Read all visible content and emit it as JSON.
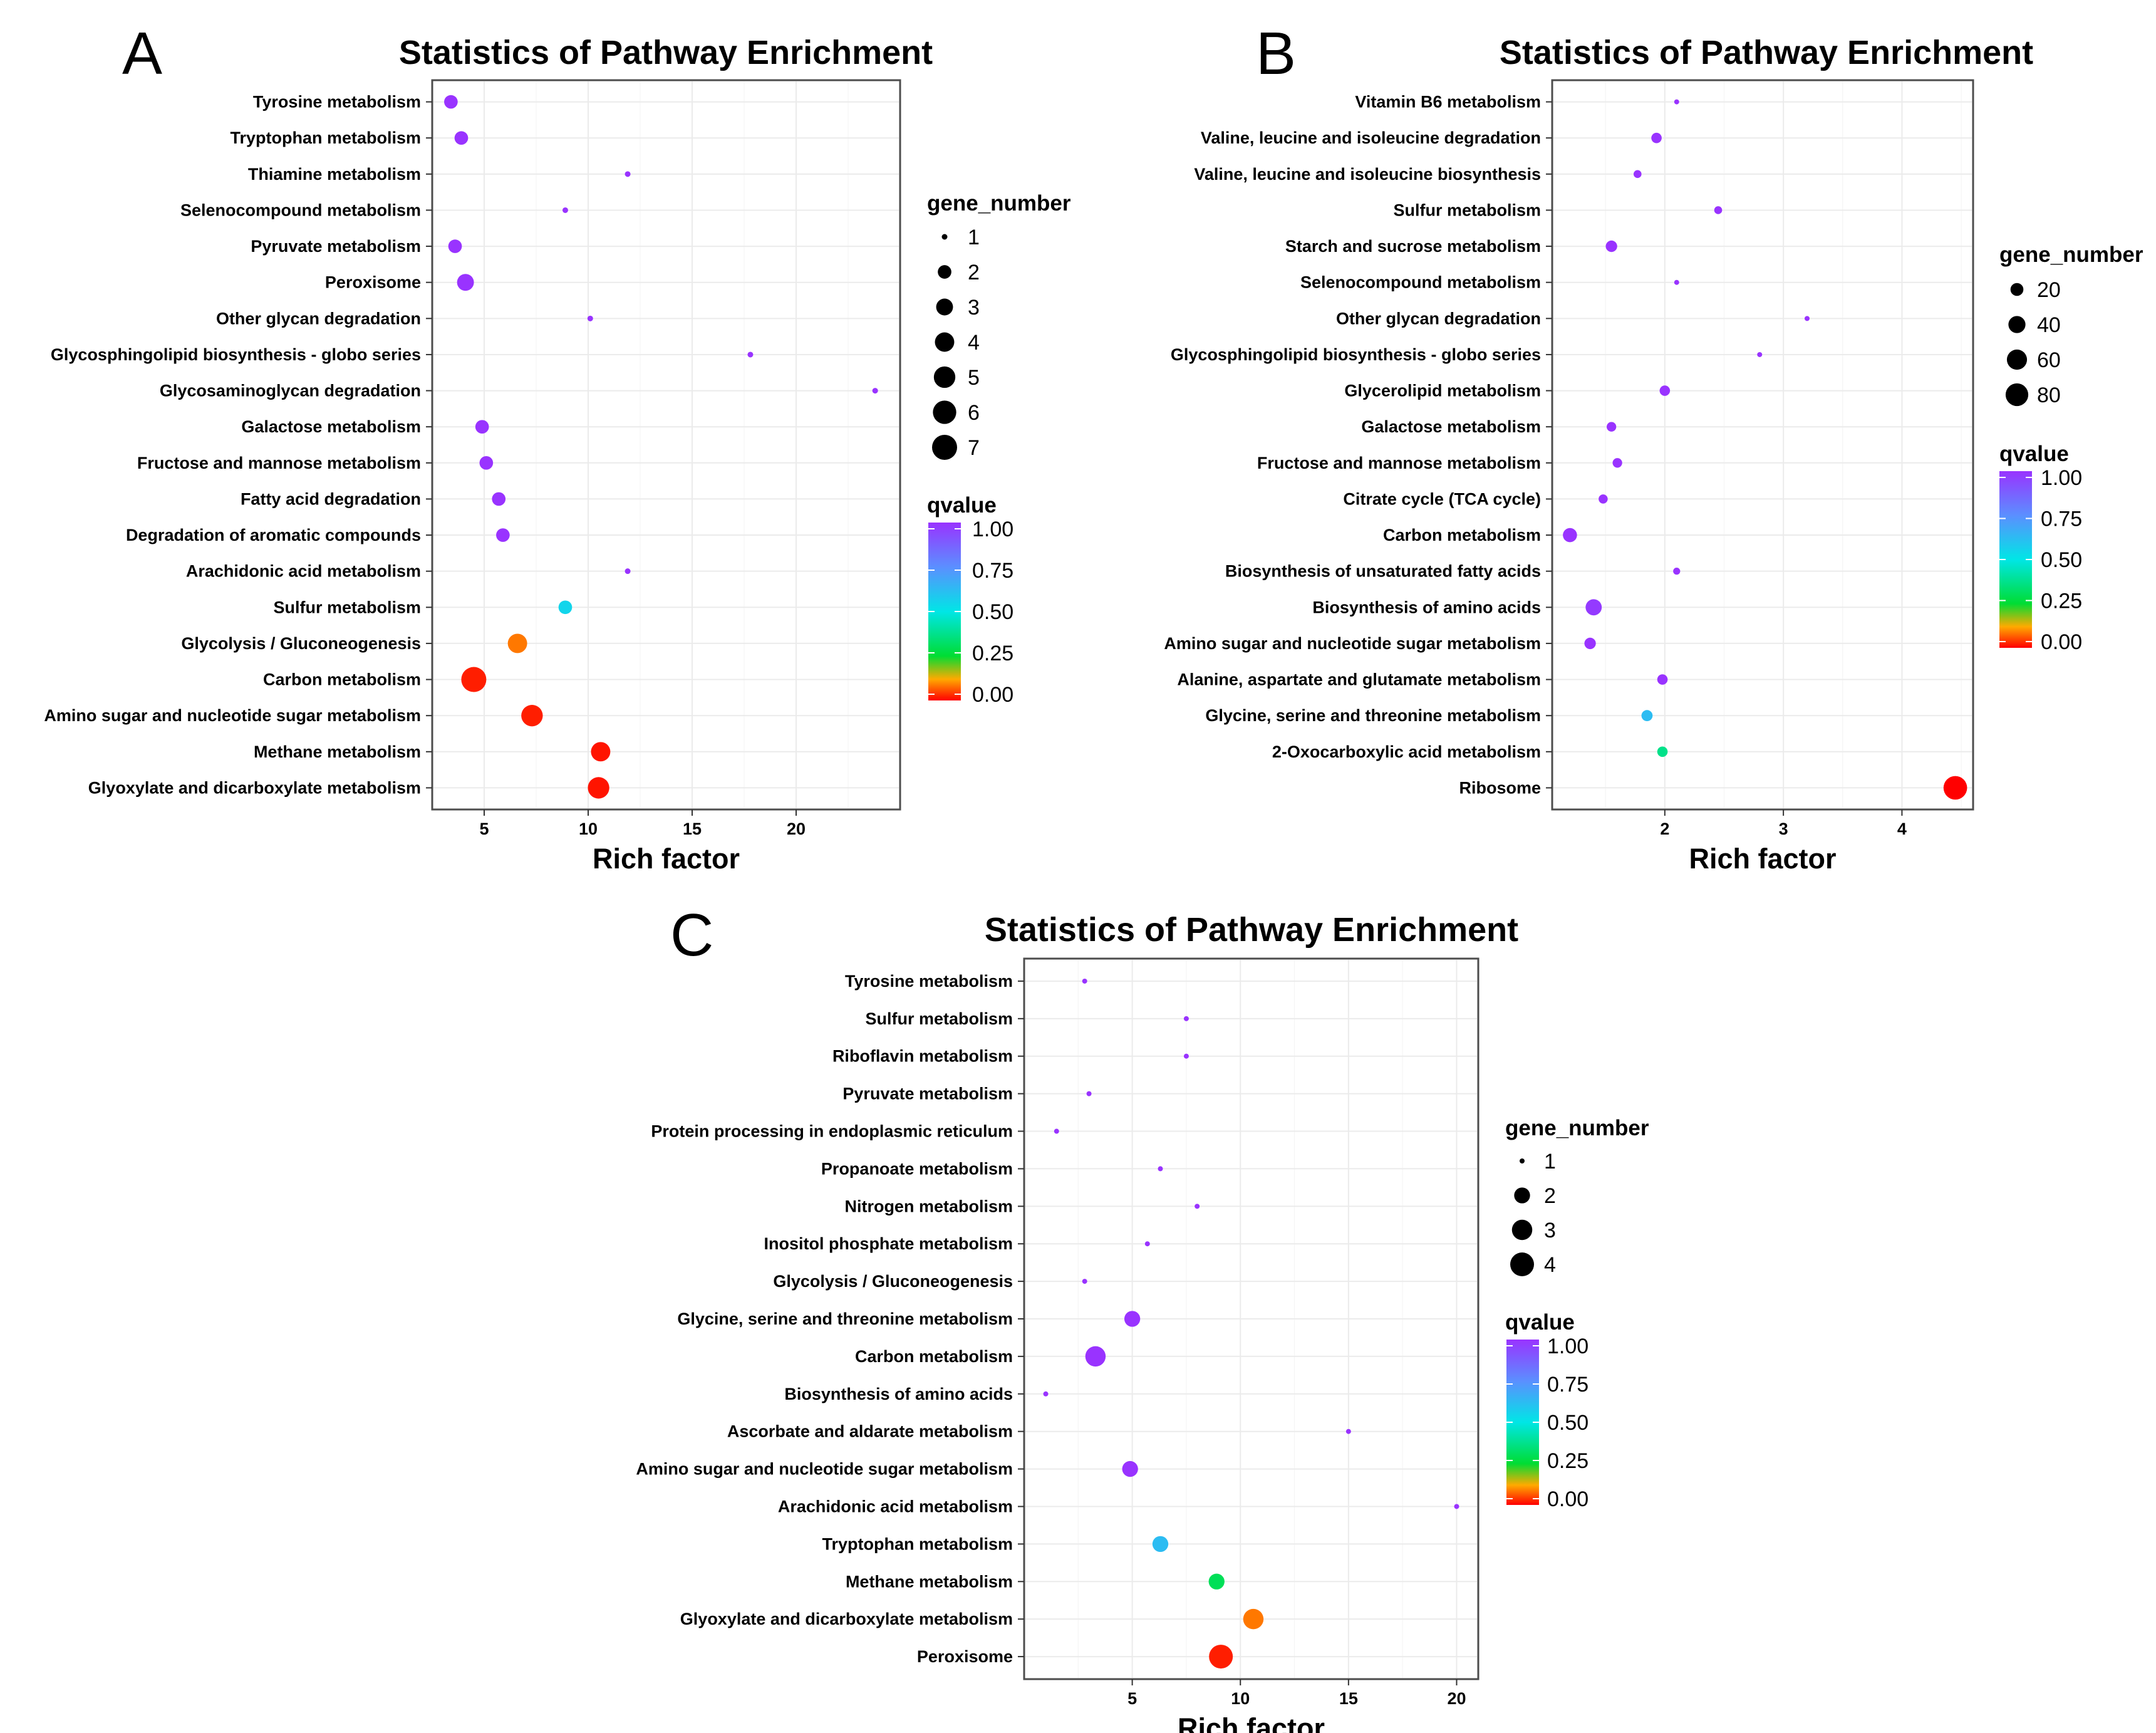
{
  "figure": {
    "panels": [
      "A",
      "B",
      "C"
    ]
  },
  "chart_data": [
    {
      "panel": "A",
      "type": "scatter",
      "title": "Statistics of Pathway Enrichment",
      "xlabel": "Rich factor",
      "ylabel": "",
      "xlim": [
        2.5,
        25
      ],
      "xticks": [
        5,
        10,
        15,
        20
      ],
      "size_legend_title": "gene_number",
      "size_legend": [
        1,
        2,
        3,
        4,
        5,
        6,
        7
      ],
      "size_range": [
        1,
        7
      ],
      "color_legend_title": "qvalue",
      "color_legend": [
        "1.00",
        "0.75",
        "0.50",
        "0.25",
        "0.00"
      ],
      "categories": [
        "Tyrosine metabolism",
        "Tryptophan metabolism",
        "Thiamine metabolism",
        "Selenocompound metabolism",
        "Pyruvate metabolism",
        "Peroxisome",
        "Other glycan degradation",
        "Glycosphingolipid biosynthesis - globo series",
        "Glycosaminoglycan degradation",
        "Galactose metabolism",
        "Fructose and mannose metabolism",
        "Fatty acid degradation",
        "Degradation of aromatic compounds",
        "Arachidonic acid metabolism",
        "Sulfur metabolism",
        "Glycolysis / Gluconeogenesis",
        "Carbon metabolism",
        "Amino sugar and nucleotide sugar metabolism",
        "Methane metabolism",
        "Glyoxylate and dicarboxylate metabolism"
      ],
      "points": [
        {
          "rich_factor": 3.4,
          "gene_number": 2,
          "qvalue": 1.0
        },
        {
          "rich_factor": 3.9,
          "gene_number": 2,
          "qvalue": 1.0
        },
        {
          "rich_factor": 11.9,
          "gene_number": 1,
          "qvalue": 1.0
        },
        {
          "rich_factor": 8.9,
          "gene_number": 1,
          "qvalue": 1.0
        },
        {
          "rich_factor": 3.6,
          "gene_number": 2,
          "qvalue": 1.0
        },
        {
          "rich_factor": 4.1,
          "gene_number": 3,
          "qvalue": 1.0
        },
        {
          "rich_factor": 10.1,
          "gene_number": 1,
          "qvalue": 1.0
        },
        {
          "rich_factor": 17.8,
          "gene_number": 1,
          "qvalue": 1.0
        },
        {
          "rich_factor": 23.8,
          "gene_number": 1,
          "qvalue": 1.0
        },
        {
          "rich_factor": 4.9,
          "gene_number": 2,
          "qvalue": 1.0
        },
        {
          "rich_factor": 5.1,
          "gene_number": 2,
          "qvalue": 1.0
        },
        {
          "rich_factor": 5.7,
          "gene_number": 2,
          "qvalue": 1.0
        },
        {
          "rich_factor": 5.9,
          "gene_number": 2,
          "qvalue": 1.0
        },
        {
          "rich_factor": 11.9,
          "gene_number": 1,
          "qvalue": 1.0
        },
        {
          "rich_factor": 8.9,
          "gene_number": 2,
          "qvalue": 0.55
        },
        {
          "rich_factor": 6.6,
          "gene_number": 4,
          "qvalue": 0.12
        },
        {
          "rich_factor": 4.5,
          "gene_number": 7,
          "qvalue": 0.03
        },
        {
          "rich_factor": 7.3,
          "gene_number": 5,
          "qvalue": 0.03
        },
        {
          "rich_factor": 10.6,
          "gene_number": 4,
          "qvalue": 0.02
        },
        {
          "rich_factor": 10.5,
          "gene_number": 5,
          "qvalue": 0.02
        }
      ]
    },
    {
      "panel": "B",
      "type": "scatter",
      "title": "Statistics of Pathway Enrichment",
      "xlabel": "Rich factor",
      "ylabel": "",
      "xlim": [
        1.05,
        4.6
      ],
      "xticks": [
        2,
        3,
        4
      ],
      "size_legend_title": "gene_number",
      "size_legend": [
        20,
        40,
        60,
        80
      ],
      "size_range": [
        5,
        90
      ],
      "color_legend_title": "qvalue",
      "color_legend": [
        "1.00",
        "0.75",
        "0.50",
        "0.25",
        "0.00"
      ],
      "categories": [
        "Vitamin B6 metabolism",
        "Valine, leucine and isoleucine degradation",
        "Valine, leucine and isoleucine biosynthesis",
        "Sulfur metabolism",
        "Starch and sucrose metabolism",
        "Selenocompound metabolism",
        "Other glycan degradation",
        "Glycosphingolipid biosynthesis - globo series",
        "Glycerolipid metabolism",
        "Galactose metabolism",
        "Fructose and mannose metabolism",
        "Citrate cycle (TCA cycle)",
        "Carbon metabolism",
        "Biosynthesis of unsaturated fatty acids",
        "Biosynthesis of amino acids",
        "Amino sugar and nucleotide sugar metabolism",
        "Alanine, aspartate and glutamate metabolism",
        "Glycine, serine and threonine metabolism",
        "2-Oxocarboxylic acid metabolism",
        "Ribosome"
      ],
      "points": [
        {
          "rich_factor": 2.1,
          "gene_number": 5,
          "qvalue": 1.0
        },
        {
          "rich_factor": 1.93,
          "gene_number": 12,
          "qvalue": 1.0
        },
        {
          "rich_factor": 1.77,
          "gene_number": 7,
          "qvalue": 1.0
        },
        {
          "rich_factor": 2.45,
          "gene_number": 7,
          "qvalue": 1.0
        },
        {
          "rich_factor": 1.55,
          "gene_number": 15,
          "qvalue": 1.0
        },
        {
          "rich_factor": 2.1,
          "gene_number": 5,
          "qvalue": 1.0
        },
        {
          "rich_factor": 3.2,
          "gene_number": 5,
          "qvalue": 1.0
        },
        {
          "rich_factor": 2.8,
          "gene_number": 5,
          "qvalue": 1.0
        },
        {
          "rich_factor": 2.0,
          "gene_number": 12,
          "qvalue": 1.0
        },
        {
          "rich_factor": 1.55,
          "gene_number": 10,
          "qvalue": 1.0
        },
        {
          "rich_factor": 1.6,
          "gene_number": 10,
          "qvalue": 1.0
        },
        {
          "rich_factor": 1.48,
          "gene_number": 9,
          "qvalue": 1.0
        },
        {
          "rich_factor": 1.2,
          "gene_number": 25,
          "qvalue": 1.0
        },
        {
          "rich_factor": 2.1,
          "gene_number": 6,
          "qvalue": 1.0
        },
        {
          "rich_factor": 1.4,
          "gene_number": 35,
          "qvalue": 0.98
        },
        {
          "rich_factor": 1.37,
          "gene_number": 15,
          "qvalue": 1.0
        },
        {
          "rich_factor": 1.98,
          "gene_number": 12,
          "qvalue": 1.0
        },
        {
          "rich_factor": 1.85,
          "gene_number": 14,
          "qvalue": 0.62
        },
        {
          "rich_factor": 1.98,
          "gene_number": 12,
          "qvalue": 0.37
        },
        {
          "rich_factor": 4.45,
          "gene_number": 88,
          "qvalue": 0.0
        }
      ]
    },
    {
      "panel": "C",
      "type": "scatter",
      "title": "Statistics of Pathway Enrichment",
      "xlabel": "Rich factor",
      "ylabel": "",
      "xlim": [
        0,
        21
      ],
      "xticks": [
        5,
        10,
        15,
        20
      ],
      "size_legend_title": "gene_number",
      "size_legend": [
        1,
        2,
        3,
        4
      ],
      "size_range": [
        1,
        4
      ],
      "color_legend_title": "qvalue",
      "color_legend": [
        "1.00",
        "0.75",
        "0.50",
        "0.25",
        "0.00"
      ],
      "categories": [
        "Tyrosine metabolism",
        "Sulfur metabolism",
        "Riboflavin metabolism",
        "Pyruvate metabolism",
        "Protein processing in endoplasmic reticulum",
        "Propanoate metabolism",
        "Nitrogen metabolism",
        "Inositol phosphate metabolism",
        "Glycolysis / Gluconeogenesis",
        "Glycine, serine and threonine metabolism",
        "Carbon metabolism",
        "Biosynthesis of amino acids",
        "Ascorbate and aldarate metabolism",
        "Amino sugar and nucleotide sugar metabolism",
        "Arachidonic acid metabolism",
        "Tryptophan metabolism",
        "Methane metabolism",
        "Glyoxylate and dicarboxylate metabolism",
        "Peroxisome"
      ],
      "points": [
        {
          "rich_factor": 2.8,
          "gene_number": 1,
          "qvalue": 1.0
        },
        {
          "rich_factor": 7.5,
          "gene_number": 1,
          "qvalue": 1.0
        },
        {
          "rich_factor": 7.5,
          "gene_number": 1,
          "qvalue": 1.0
        },
        {
          "rich_factor": 3.0,
          "gene_number": 1,
          "qvalue": 1.0
        },
        {
          "rich_factor": 1.5,
          "gene_number": 1,
          "qvalue": 1.0
        },
        {
          "rich_factor": 6.3,
          "gene_number": 1,
          "qvalue": 1.0
        },
        {
          "rich_factor": 8.0,
          "gene_number": 1,
          "qvalue": 1.0
        },
        {
          "rich_factor": 5.7,
          "gene_number": 1,
          "qvalue": 1.0
        },
        {
          "rich_factor": 2.8,
          "gene_number": 1,
          "qvalue": 1.0
        },
        {
          "rich_factor": 5.0,
          "gene_number": 2,
          "qvalue": 1.0
        },
        {
          "rich_factor": 3.3,
          "gene_number": 3,
          "qvalue": 1.0
        },
        {
          "rich_factor": 1.0,
          "gene_number": 1,
          "qvalue": 1.0
        },
        {
          "rich_factor": 15.0,
          "gene_number": 1,
          "qvalue": 1.0
        },
        {
          "rich_factor": 4.9,
          "gene_number": 2,
          "qvalue": 1.0
        },
        {
          "rich_factor": 20.0,
          "gene_number": 1,
          "qvalue": 1.0
        },
        {
          "rich_factor": 6.3,
          "gene_number": 2,
          "qvalue": 0.62
        },
        {
          "rich_factor": 8.9,
          "gene_number": 2,
          "qvalue": 0.3
        },
        {
          "rich_factor": 10.6,
          "gene_number": 3,
          "qvalue": 0.12
        },
        {
          "rich_factor": 9.1,
          "gene_number": 4,
          "qvalue": 0.03
        }
      ]
    }
  ]
}
